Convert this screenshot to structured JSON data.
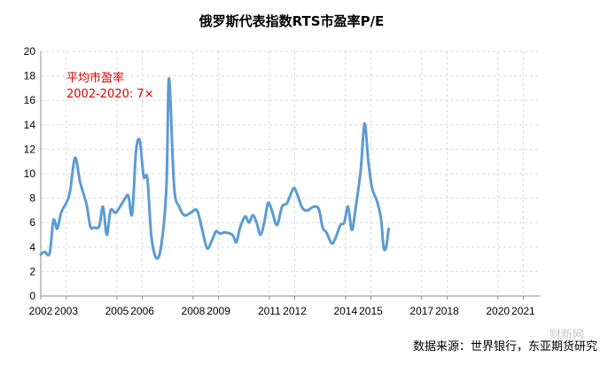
{
  "chart_data": {
    "type": "line",
    "title": "俄罗斯代表指数RTS市盈率P/E",
    "xlabel": "",
    "ylabel": "",
    "ylim": [
      0,
      20
    ],
    "yticks": [
      "0",
      "2",
      "4",
      "6",
      "8",
      "10",
      "12",
      "14",
      "16",
      "18",
      "20"
    ],
    "xlim": [
      2002,
      2021.65
    ],
    "xticks": [
      "2002",
      "2003",
      "2005",
      "2006",
      "2008",
      "2009",
      "2011",
      "2012",
      "2014",
      "2015",
      "2017",
      "2018",
      "2020",
      "2021"
    ],
    "xtick_positions": [
      2002,
      2003,
      2005,
      2006,
      2008,
      2009,
      2011,
      2012,
      2014,
      2015,
      2017,
      2018,
      2020,
      2021
    ],
    "grid": true,
    "line_color": "#5b9bd5",
    "annotation_color": "#e00000",
    "annotation": {
      "line1": "平均市盈率",
      "line2": "2002-2020: 7×"
    },
    "series": [
      {
        "points": [
          [
            2002.0,
            3.4
          ],
          [
            2002.15,
            3.6
          ],
          [
            2002.35,
            3.5
          ],
          [
            2002.5,
            6.2
          ],
          [
            2002.65,
            5.5
          ],
          [
            2002.8,
            6.8
          ],
          [
            2003.0,
            7.6
          ],
          [
            2003.15,
            8.5
          ],
          [
            2003.35,
            11.3
          ],
          [
            2003.55,
            9.3
          ],
          [
            2003.8,
            7.5
          ],
          [
            2003.95,
            5.7
          ],
          [
            2004.1,
            5.6
          ],
          [
            2004.3,
            5.7
          ],
          [
            2004.45,
            7.3
          ],
          [
            2004.6,
            5.0
          ],
          [
            2004.75,
            7.0
          ],
          [
            2004.95,
            6.8
          ],
          [
            2005.15,
            7.4
          ],
          [
            2005.3,
            7.9
          ],
          [
            2005.45,
            8.2
          ],
          [
            2005.6,
            6.7
          ],
          [
            2005.75,
            11.8
          ],
          [
            2005.9,
            12.7
          ],
          [
            2006.05,
            9.8
          ],
          [
            2006.2,
            9.6
          ],
          [
            2006.35,
            5.0
          ],
          [
            2006.55,
            3.1
          ],
          [
            2006.75,
            4.2
          ],
          [
            2006.95,
            9.0
          ],
          [
            2007.05,
            17.8
          ],
          [
            2007.25,
            9.0
          ],
          [
            2007.45,
            7.3
          ],
          [
            2007.65,
            6.6
          ],
          [
            2007.9,
            6.8
          ],
          [
            2008.15,
            7.0
          ],
          [
            2008.35,
            5.5
          ],
          [
            2008.55,
            3.9
          ],
          [
            2008.75,
            4.6
          ],
          [
            2008.9,
            5.3
          ],
          [
            2009.05,
            5.1
          ],
          [
            2009.25,
            5.2
          ],
          [
            2009.55,
            5.0
          ],
          [
            2009.7,
            4.4
          ],
          [
            2009.85,
            5.6
          ],
          [
            2010.05,
            6.5
          ],
          [
            2010.2,
            6.0
          ],
          [
            2010.35,
            6.6
          ],
          [
            2010.5,
            6.0
          ],
          [
            2010.65,
            5.0
          ],
          [
            2010.8,
            6.0
          ],
          [
            2010.95,
            7.6
          ],
          [
            2011.1,
            7.0
          ],
          [
            2011.3,
            5.8
          ],
          [
            2011.5,
            7.3
          ],
          [
            2011.7,
            7.6
          ],
          [
            2011.95,
            8.8
          ],
          [
            2012.1,
            8.3
          ],
          [
            2012.3,
            7.2
          ],
          [
            2012.5,
            7.0
          ],
          [
            2012.75,
            7.3
          ],
          [
            2012.95,
            7.1
          ],
          [
            2013.1,
            5.6
          ],
          [
            2013.25,
            5.2
          ],
          [
            2013.45,
            4.3
          ],
          [
            2013.6,
            4.7
          ],
          [
            2013.8,
            5.8
          ],
          [
            2013.95,
            6.0
          ],
          [
            2014.1,
            7.3
          ],
          [
            2014.25,
            5.4
          ],
          [
            2014.4,
            7.2
          ],
          [
            2014.6,
            10.3
          ],
          [
            2014.75,
            14.1
          ],
          [
            2014.9,
            11.0
          ],
          [
            2015.05,
            8.8
          ],
          [
            2015.25,
            7.7
          ],
          [
            2015.4,
            6.3
          ],
          [
            2015.5,
            4.0
          ],
          [
            2015.6,
            4.0
          ],
          [
            2015.7,
            5.5
          ]
        ]
      }
    ]
  },
  "source": "数据来源：世界银行，东亚期货研究",
  "watermark": "财新网"
}
